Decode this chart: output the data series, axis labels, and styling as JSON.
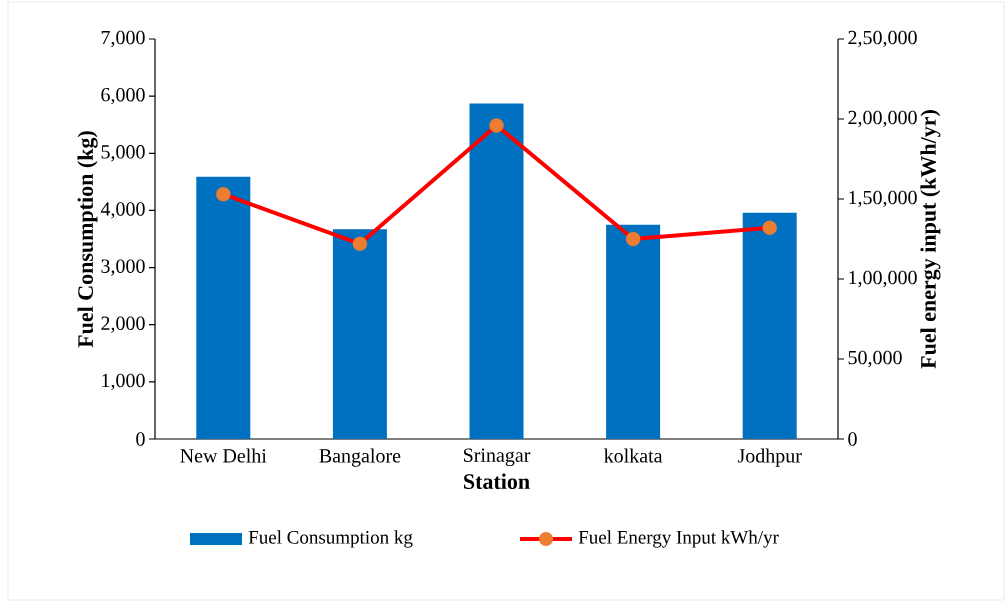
{
  "chart_data": {
    "type": "bar",
    "xlabel": "Station",
    "ylabel": "Fuel Consumption (kg)",
    "y2label": "Fuel energy input (kWh/yr)",
    "categories": [
      "New Delhi",
      "Bangalore",
      "Srinagar",
      "kolkata",
      "Jodhpur"
    ],
    "series": [
      {
        "name": "Fuel Consumption kg",
        "color": "#0070c0",
        "values": [
          4590,
          3670,
          5870,
          3750,
          3960
        ]
      },
      {
        "name": "Fuel Energy Input kWh/yr",
        "type": "line",
        "axis": "y2",
        "marker": "circle",
        "color": "#ff0000",
        "colors": [
          "#ed7d31",
          "#ed7d31",
          "#ed7d31",
          "#ed7d31",
          "#ed7d31"
        ],
        "values": [
          153000,
          122000,
          196000,
          125000,
          132000
        ]
      }
    ],
    "ylim": [
      0,
      7000
    ],
    "yticks": [
      0,
      {
        "value": 1000,
        "label": "1,000"
      },
      {
        "value": 2000,
        "label": "2,000"
      },
      {
        "value": 3000,
        "label": "3,000"
      },
      {
        "value": 4000,
        "label": "4,000"
      },
      {
        "value": 5000,
        "label": "5,000"
      },
      {
        "value": 6000,
        "label": "6,000"
      },
      {
        "value": 7000,
        "label": "7,000"
      }
    ],
    "y2lim": [
      0,
      250000
    ],
    "y2ticks": [
      0,
      {
        "value": 50000,
        "label": "50,000"
      },
      {
        "value": 100000,
        "label": "1,00,000"
      },
      {
        "value": 150000,
        "label": "1,50,000"
      },
      {
        "value": 200000,
        "label": "2,00,000"
      },
      {
        "value": 250000,
        "label": "2,50,000"
      }
    ],
    "grid": false,
    "legend": "bottom"
  }
}
